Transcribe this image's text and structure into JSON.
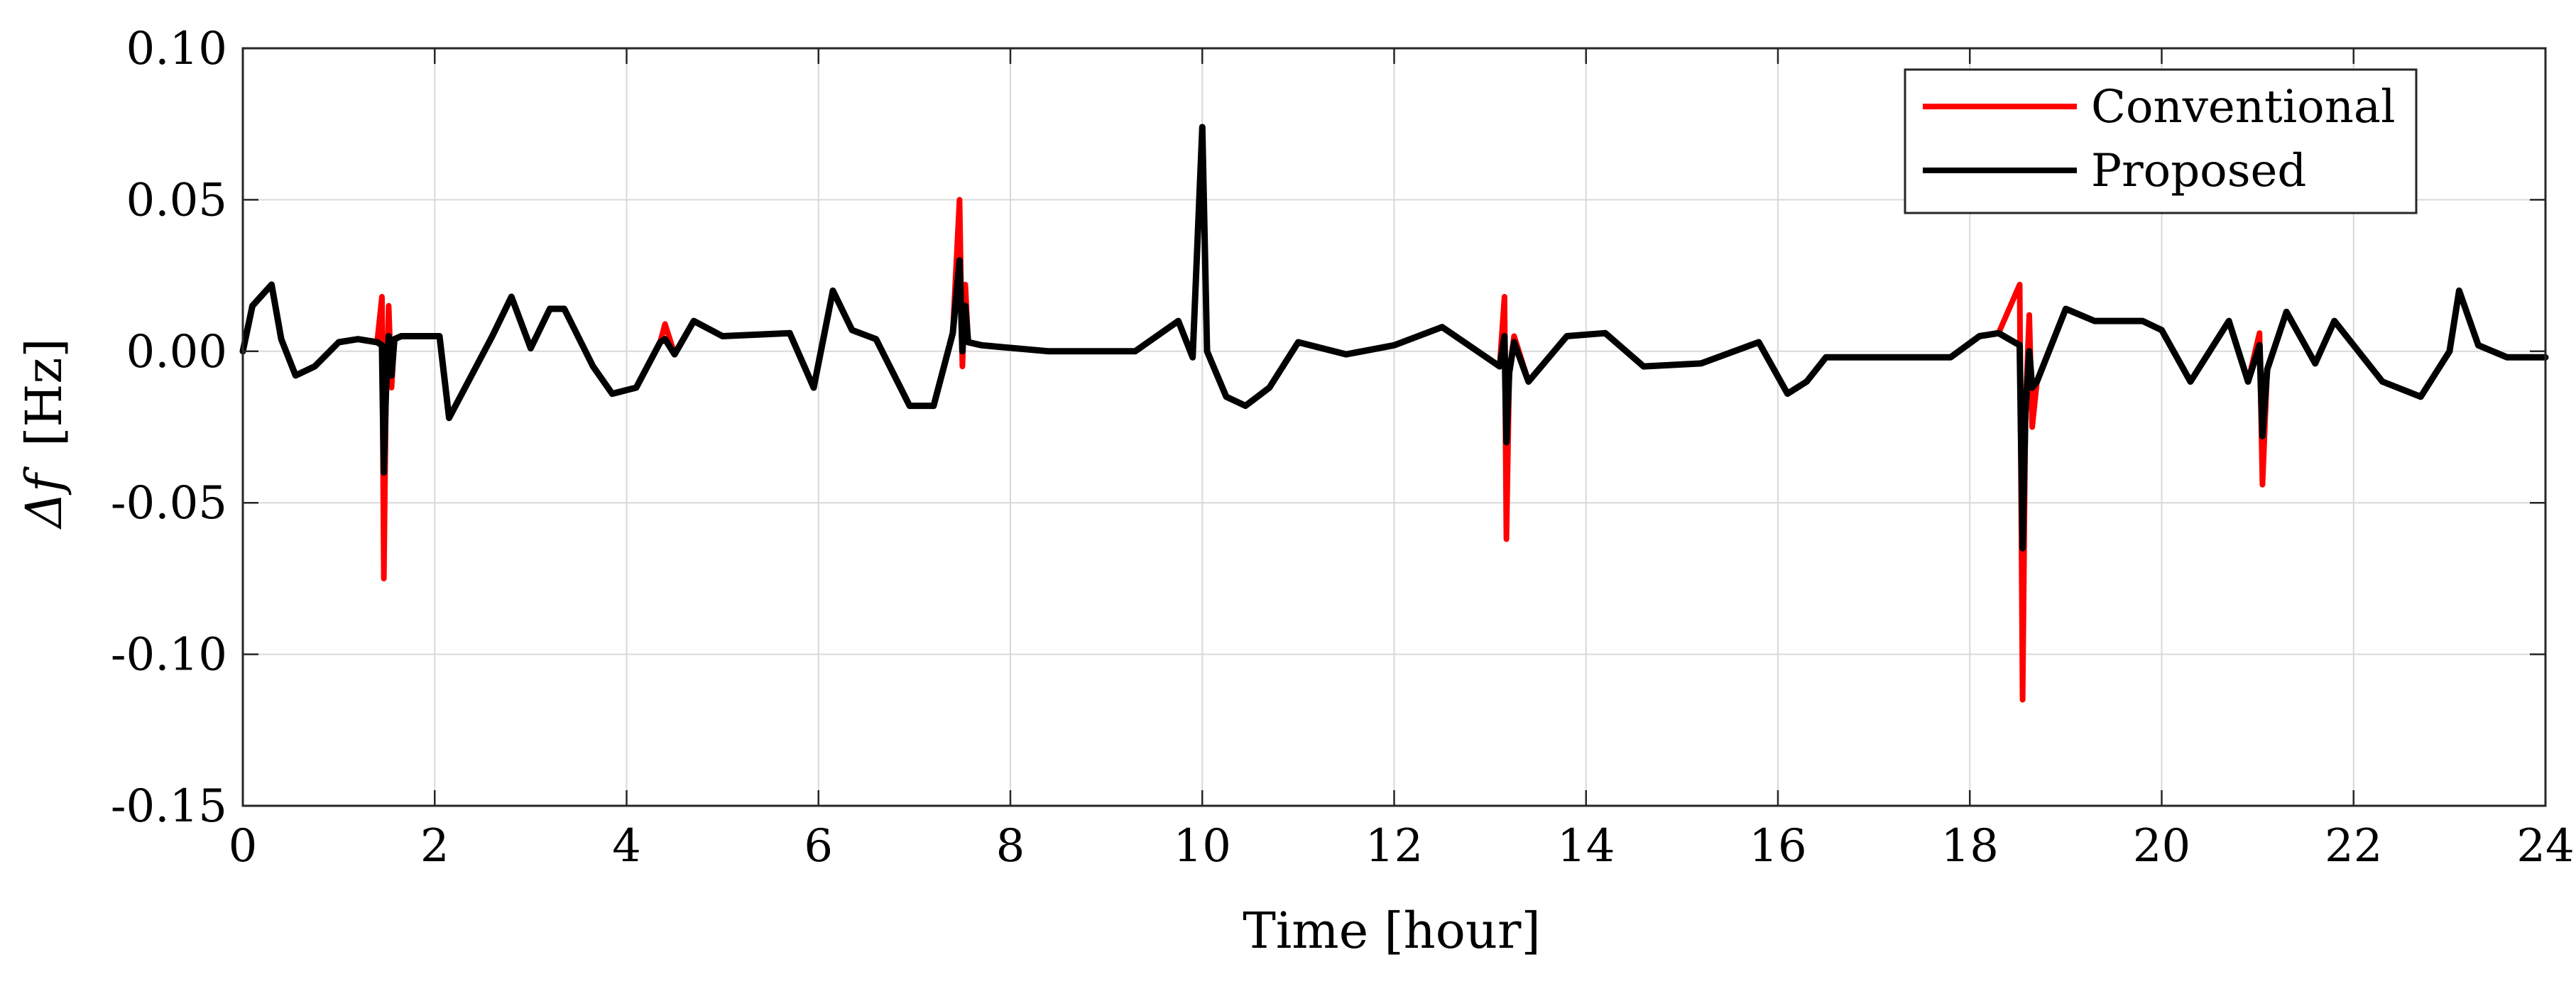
{
  "chart_data": {
    "type": "line",
    "xlabel": "Time [hour]",
    "ylabel_symbol": "Δf",
    "ylabel_unit": "[Hz]",
    "xlim": [
      0,
      24
    ],
    "ylim": [
      -0.15,
      0.1
    ],
    "x_ticks": [
      0,
      2,
      4,
      6,
      8,
      10,
      12,
      14,
      16,
      18,
      20,
      22,
      24
    ],
    "x_tick_labels": [
      "0",
      "2",
      "4",
      "6",
      "8",
      "10",
      "12",
      "14",
      "16",
      "18",
      "20",
      "22",
      "24"
    ],
    "y_ticks": [
      0.1,
      0.05,
      0,
      -0.05,
      -0.1,
      -0.15
    ],
    "y_tick_labels": [
      "0.10",
      "0.05",
      "0.00",
      "-0.05",
      "-0.10",
      "-0.15"
    ],
    "grid": true,
    "legend_position": "top-right",
    "series": [
      {
        "name": "Conventional",
        "color": "#ff0000",
        "x": [
          0,
          0.1,
          0.3,
          0.4,
          0.55,
          0.75,
          1.0,
          1.2,
          1.4,
          1.45,
          1.47,
          1.49,
          1.52,
          1.55,
          1.58,
          1.65,
          2.05,
          2.15,
          2.35,
          2.6,
          2.8,
          3.0,
          3.2,
          3.35,
          3.65,
          3.85,
          4.1,
          4.35,
          4.4,
          4.5,
          4.7,
          5.0,
          5.7,
          5.95,
          6.15,
          6.35,
          6.6,
          6.95,
          7.2,
          7.4,
          7.47,
          7.5,
          7.53,
          7.56,
          7.7,
          8.4,
          9.3,
          9.75,
          9.9,
          10.0,
          10.05,
          10.25,
          10.45,
          10.7,
          11.0,
          11.5,
          12.0,
          12.5,
          13.1,
          13.15,
          13.17,
          13.2,
          13.25,
          13.4,
          13.8,
          14.2,
          14.6,
          15.2,
          15.8,
          16.1,
          16.3,
          16.5,
          17.0,
          17.8,
          18.1,
          18.3,
          18.52,
          18.55,
          18.58,
          18.62,
          18.65,
          18.7,
          19.0,
          19.3,
          19.8,
          20.0,
          20.3,
          20.7,
          20.9,
          21.02,
          21.05,
          21.1,
          21.3,
          21.6,
          21.8,
          22.3,
          22.7,
          23.0,
          23.1,
          23.3,
          23.6,
          24.0
        ],
        "y": [
          0.0,
          0.015,
          0.022,
          0.004,
          -0.008,
          -0.005,
          0.003,
          0.004,
          0.003,
          0.018,
          -0.075,
          -0.02,
          0.015,
          -0.012,
          0.004,
          0.005,
          0.005,
          -0.022,
          -0.01,
          0.005,
          0.018,
          0.001,
          0.014,
          0.014,
          -0.005,
          -0.014,
          -0.012,
          0.003,
          0.009,
          -0.001,
          0.01,
          0.005,
          0.006,
          -0.012,
          0.02,
          0.007,
          0.004,
          -0.018,
          -0.018,
          0.006,
          0.05,
          -0.005,
          0.022,
          0.003,
          0.002,
          0.0,
          0.0,
          0.01,
          -0.002,
          0.073,
          0.0,
          -0.015,
          -0.018,
          -0.012,
          0.003,
          -0.001,
          0.002,
          0.008,
          -0.005,
          0.018,
          -0.062,
          -0.007,
          0.005,
          -0.01,
          0.005,
          0.006,
          -0.005,
          -0.004,
          0.003,
          -0.014,
          -0.01,
          -0.002,
          -0.002,
          -0.002,
          0.005,
          0.006,
          0.022,
          -0.115,
          -0.02,
          0.012,
          -0.025,
          -0.01,
          0.014,
          0.01,
          0.01,
          0.007,
          -0.01,
          0.01,
          -0.01,
          0.006,
          -0.044,
          -0.006,
          0.013,
          -0.004,
          0.01,
          -0.01,
          -0.015,
          0.0,
          0.02,
          0.002,
          -0.002,
          -0.002
        ]
      },
      {
        "name": "Proposed",
        "color": "#000000",
        "x": [
          0,
          0.1,
          0.3,
          0.4,
          0.55,
          0.75,
          1.0,
          1.2,
          1.4,
          1.45,
          1.47,
          1.49,
          1.52,
          1.55,
          1.58,
          1.65,
          2.05,
          2.15,
          2.35,
          2.6,
          2.8,
          3.0,
          3.2,
          3.35,
          3.65,
          3.85,
          4.1,
          4.35,
          4.4,
          4.5,
          4.7,
          5.0,
          5.7,
          5.95,
          6.15,
          6.35,
          6.6,
          6.95,
          7.2,
          7.4,
          7.47,
          7.5,
          7.53,
          7.56,
          7.7,
          8.4,
          9.3,
          9.75,
          9.9,
          10.0,
          10.05,
          10.25,
          10.45,
          10.7,
          11.0,
          11.5,
          12.0,
          12.5,
          13.1,
          13.15,
          13.17,
          13.2,
          13.25,
          13.4,
          13.8,
          14.2,
          14.6,
          15.2,
          15.8,
          16.1,
          16.3,
          16.5,
          17.0,
          17.8,
          18.1,
          18.3,
          18.52,
          18.55,
          18.58,
          18.62,
          18.65,
          18.7,
          19.0,
          19.3,
          19.8,
          20.0,
          20.3,
          20.7,
          20.9,
          21.02,
          21.05,
          21.1,
          21.3,
          21.6,
          21.8,
          22.3,
          22.7,
          23.0,
          23.1,
          23.3,
          23.6,
          24.0
        ],
        "y": [
          0.0,
          0.015,
          0.022,
          0.004,
          -0.008,
          -0.005,
          0.003,
          0.004,
          0.003,
          0.002,
          -0.04,
          -0.015,
          0.005,
          -0.008,
          0.004,
          0.005,
          0.005,
          -0.022,
          -0.01,
          0.005,
          0.018,
          0.001,
          0.014,
          0.014,
          -0.005,
          -0.014,
          -0.012,
          0.003,
          0.004,
          -0.001,
          0.01,
          0.005,
          0.006,
          -0.012,
          0.02,
          0.007,
          0.004,
          -0.018,
          -0.018,
          0.006,
          0.03,
          0.0,
          0.015,
          0.003,
          0.002,
          0.0,
          0.0,
          0.01,
          -0.002,
          0.074,
          0.0,
          -0.015,
          -0.018,
          -0.012,
          0.003,
          -0.001,
          0.002,
          0.008,
          -0.005,
          0.005,
          -0.03,
          -0.007,
          0.003,
          -0.01,
          0.005,
          0.006,
          -0.005,
          -0.004,
          0.003,
          -0.014,
          -0.01,
          -0.002,
          -0.002,
          -0.002,
          0.005,
          0.006,
          0.002,
          -0.065,
          -0.02,
          0.0,
          -0.012,
          -0.01,
          0.014,
          0.01,
          0.01,
          0.007,
          -0.01,
          0.01,
          -0.01,
          0.002,
          -0.028,
          -0.006,
          0.013,
          -0.004,
          0.01,
          -0.01,
          -0.015,
          0.0,
          0.02,
          0.002,
          -0.002,
          -0.002
        ]
      }
    ]
  }
}
